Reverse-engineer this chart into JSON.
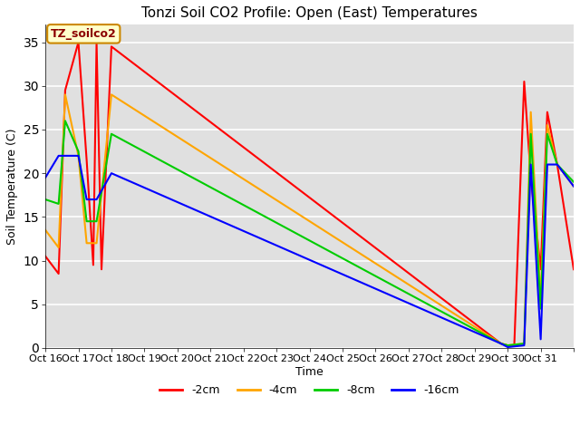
{
  "title": "Tonzi Soil CO2 Profile: Open (East) Temperatures",
  "xlabel": "Time",
  "ylabel": "Soil Temperature (C)",
  "annotation": "TZ_soilco2",
  "xlim": [
    0,
    16
  ],
  "ylim": [
    0,
    37
  ],
  "yticks": [
    0,
    5,
    10,
    15,
    20,
    25,
    30,
    35
  ],
  "xtick_labels": [
    "Oct 16",
    "Oct 17",
    "Oct 18",
    "Oct 19",
    "Oct 20",
    "Oct 21",
    "Oct 22",
    "Oct 23",
    "Oct 24",
    "Oct 25",
    "Oct 26",
    "Oct 27",
    "Oct 28",
    "Oct 29",
    "Oct 30",
    "Oct 31"
  ],
  "series": {
    "-2cm": {
      "color": "#ff0000",
      "x": [
        0,
        0.4,
        0.6,
        1.0,
        1.25,
        1.45,
        1.55,
        1.7,
        2.0,
        13.8,
        14.0,
        14.2,
        14.5,
        14.7,
        15.0,
        15.2,
        15.5,
        16.0
      ],
      "y": [
        10.5,
        8.5,
        29.5,
        35.0,
        21.5,
        9.5,
        35.0,
        9.0,
        34.5,
        0.5,
        0.3,
        0.3,
        30.5,
        19.5,
        9.0,
        27.0,
        21.0,
        9.0
      ]
    },
    "-4cm": {
      "color": "#ffa500",
      "x": [
        0,
        0.4,
        0.6,
        1.0,
        1.25,
        1.55,
        2.0,
        13.8,
        14.0,
        14.5,
        14.7,
        15.0,
        15.2,
        15.5,
        16.0
      ],
      "y": [
        13.5,
        11.5,
        29.0,
        22.0,
        12.0,
        12.0,
        29.0,
        0.5,
        0.3,
        0.5,
        27.0,
        5.5,
        25.5,
        21.0,
        18.5
      ]
    },
    "-8cm": {
      "color": "#00cc00",
      "x": [
        0,
        0.4,
        0.6,
        1.0,
        1.25,
        1.55,
        2.0,
        13.8,
        14.0,
        14.5,
        14.7,
        15.0,
        15.2,
        15.5,
        16.0
      ],
      "y": [
        17.0,
        16.5,
        26.0,
        22.5,
        14.5,
        14.5,
        24.5,
        0.5,
        0.3,
        0.5,
        24.5,
        4.5,
        24.5,
        21.0,
        19.0
      ]
    },
    "-16cm": {
      "color": "#0000ff",
      "x": [
        0,
        0.4,
        0.6,
        1.0,
        1.25,
        1.55,
        2.0,
        13.8,
        14.0,
        14.5,
        14.7,
        15.0,
        15.2,
        15.5,
        16.0
      ],
      "y": [
        19.5,
        22.0,
        22.0,
        22.0,
        17.0,
        17.0,
        20.0,
        0.5,
        0.1,
        0.3,
        21.0,
        1.0,
        21.0,
        21.0,
        18.5
      ]
    }
  },
  "legend_labels": [
    "-2cm",
    "-4cm",
    "-8cm",
    "-16cm"
  ],
  "legend_colors": [
    "#ff0000",
    "#ffa500",
    "#00cc00",
    "#0000ff"
  ],
  "fig_bg_color": "#ffffff",
  "plot_bg_color": "#e0e0e0",
  "grid_color": "#ffffff",
  "title_fontsize": 11,
  "axis_label_fontsize": 9,
  "tick_fontsize": 8
}
